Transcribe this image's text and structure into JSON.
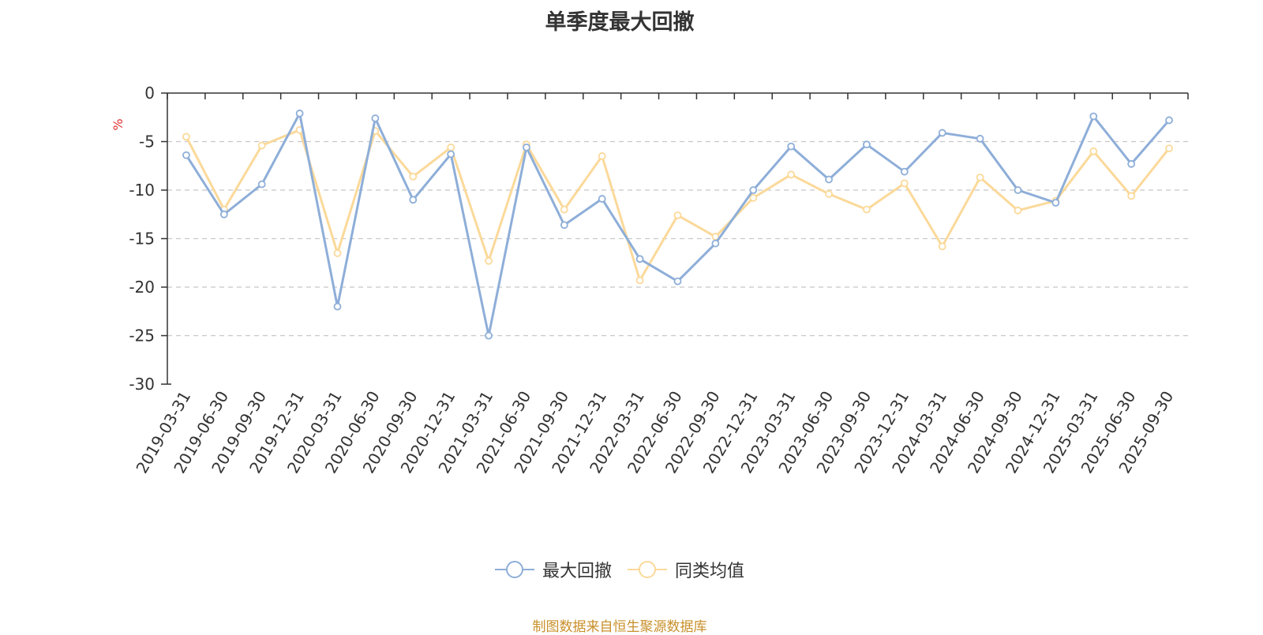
{
  "colors": {
    "series1": "#8eaed8",
    "series2": "#fbd99a",
    "axis": "#333333",
    "grid": "#c8c8c8",
    "unit": "#e03030",
    "footer": "#c8902a"
  },
  "chart_data": {
    "type": "line",
    "title": "单季度最大回撤",
    "ylabel": "%",
    "ylim": [
      -30,
      0
    ],
    "yticks": [
      0,
      -5,
      -10,
      -15,
      -20,
      -25,
      -30
    ],
    "grid": "dashed-horizontal",
    "legend_position": "bottom-center",
    "categories": [
      "2019-03-31",
      "2019-06-30",
      "2019-09-30",
      "2019-12-31",
      "2020-03-31",
      "2020-06-30",
      "2020-09-30",
      "2020-12-31",
      "2021-03-31",
      "2021-06-30",
      "2021-09-30",
      "2021-12-31",
      "2022-03-31",
      "2022-06-30",
      "2022-09-30",
      "2022-12-31",
      "2023-03-31",
      "2023-06-30",
      "2023-09-30",
      "2023-12-31",
      "2024-03-31",
      "2024-06-30",
      "2024-09-30",
      "2024-12-31",
      "2025-03-31",
      "2025-06-30",
      "2025-09-30"
    ],
    "series": [
      {
        "name": "最大回撤",
        "values": [
          -6.4,
          -12.5,
          -9.4,
          -2.1,
          -22.0,
          -2.6,
          -11.0,
          -6.3,
          -25.0,
          -5.6,
          -13.6,
          -10.9,
          -17.1,
          -19.4,
          -15.5,
          -10.0,
          -5.5,
          -8.9,
          -5.3,
          -8.1,
          -4.1,
          -4.7,
          -10.0,
          -11.3,
          -2.4,
          -7.3,
          -2.8
        ]
      },
      {
        "name": "同类均值",
        "values": [
          -4.5,
          -12.0,
          -5.4,
          -3.8,
          -16.5,
          -3.9,
          -8.6,
          -5.6,
          -17.3,
          -5.3,
          -12.0,
          -6.5,
          -19.3,
          -12.6,
          -14.8,
          -10.8,
          -8.4,
          -10.4,
          -12.0,
          -9.3,
          -15.8,
          -8.7,
          -12.1,
          -11.1,
          -6.0,
          -10.6,
          -5.7
        ]
      }
    ]
  },
  "footer": "制图数据来自恒生聚源数据库"
}
